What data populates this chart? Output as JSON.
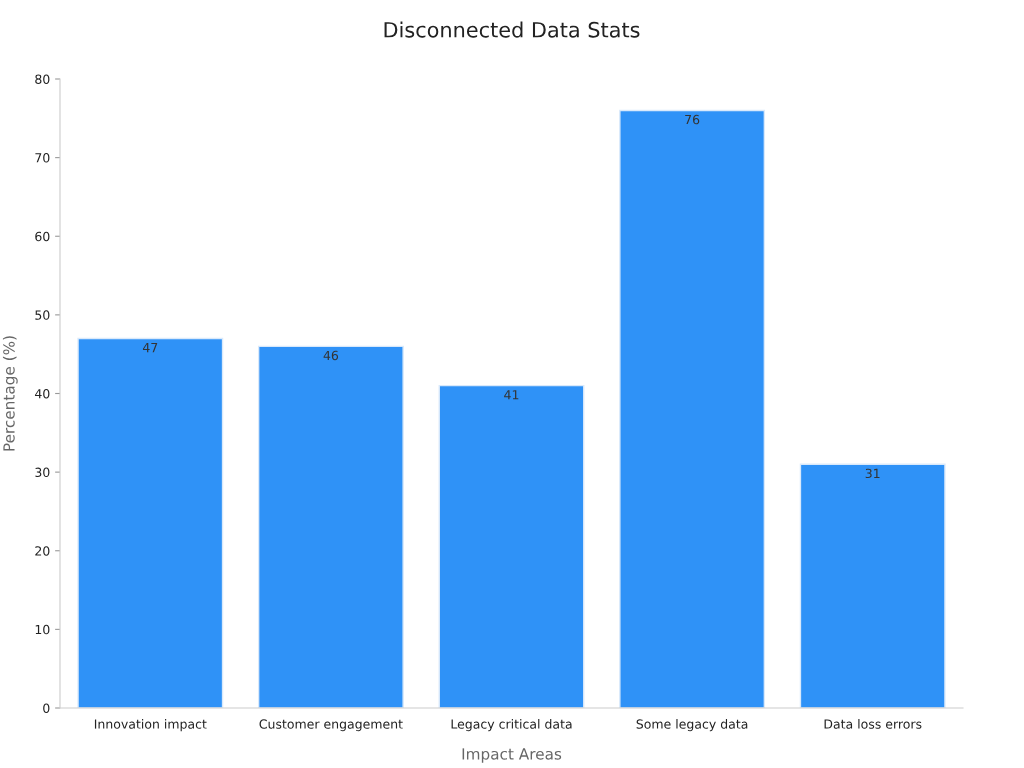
{
  "chart_data": {
    "type": "bar",
    "title": "Disconnected Data Stats",
    "xlabel": "Impact Areas",
    "ylabel": "Percentage (%)",
    "categories": [
      "Innovation impact",
      "Customer engagement",
      "Legacy critical data",
      "Some legacy data",
      "Data loss errors"
    ],
    "values": [
      47,
      46,
      41,
      76,
      31
    ],
    "color": "#2f92f7",
    "ylim": [
      0,
      80
    ],
    "yticks": [
      0,
      10,
      20,
      30,
      40,
      50,
      60,
      70,
      80
    ],
    "grid": false,
    "data_labels": true
  }
}
